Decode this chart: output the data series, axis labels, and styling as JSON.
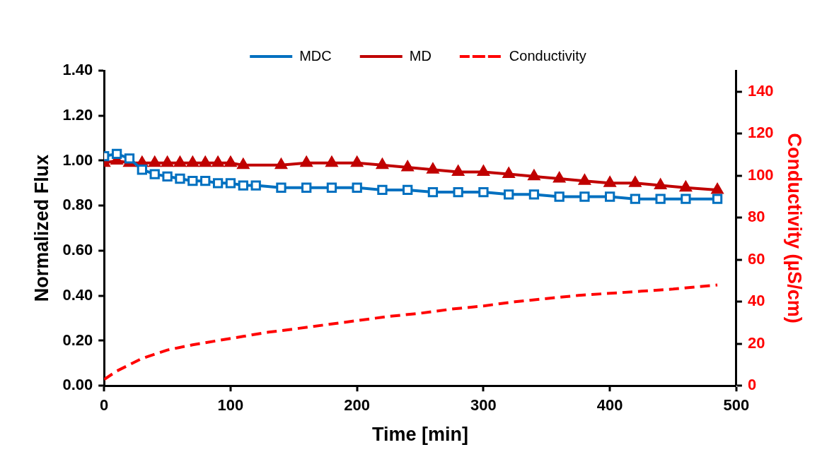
{
  "chart_data": {
    "type": "line",
    "xlabel": "Time [min]",
    "ylabel": "Normalized Flux",
    "y2label": "Conductivity (µS/cm)",
    "xlim": [
      0,
      500
    ],
    "xticks": [
      0,
      100,
      200,
      300,
      400,
      500
    ],
    "ylim": [
      0,
      1.4
    ],
    "yticks": [
      {
        "value": 0,
        "label": "0.00"
      },
      {
        "value": 0.2,
        "label": "0.20"
      },
      {
        "value": 0.4,
        "label": "0.40"
      },
      {
        "value": 0.6,
        "label": "0.60"
      },
      {
        "value": 0.8,
        "label": "0.80"
      },
      {
        "value": 1,
        "label": "1.00"
      },
      {
        "value": 1.2,
        "label": "1.20"
      },
      {
        "value": 1.4,
        "label": "1.40"
      }
    ],
    "y2lim": [
      0,
      150
    ],
    "y2ticks": [
      0,
      20,
      40,
      60,
      80,
      100,
      120,
      140
    ],
    "grid": false,
    "legend": "top",
    "series": [
      {
        "name": "MDC",
        "color": "#0070c0",
        "marker": "square",
        "line_style": "solid",
        "x": [
          0,
          10,
          20,
          30,
          40,
          50,
          60,
          70,
          80,
          90,
          100,
          110,
          120,
          140,
          160,
          180,
          200,
          220,
          240,
          260,
          280,
          300,
          320,
          340,
          360,
          380,
          400,
          420,
          440,
          460,
          485
        ],
        "values": [
          1.02,
          1.03,
          1.01,
          0.96,
          0.94,
          0.93,
          0.92,
          0.91,
          0.91,
          0.9,
          0.9,
          0.89,
          0.89,
          0.88,
          0.88,
          0.88,
          0.88,
          0.87,
          0.87,
          0.86,
          0.86,
          0.86,
          0.85,
          0.85,
          0.84,
          0.84,
          0.84,
          0.83,
          0.83,
          0.83,
          0.83
        ]
      },
      {
        "name": "MD",
        "color": "#c00000",
        "marker": "triangle",
        "line_style": "solid",
        "x": [
          0,
          10,
          20,
          30,
          40,
          50,
          60,
          70,
          80,
          90,
          100,
          110,
          140,
          160,
          180,
          200,
          220,
          240,
          260,
          280,
          300,
          320,
          340,
          360,
          380,
          400,
          420,
          440,
          460,
          485
        ],
        "values": [
          0.99,
          1.0,
          0.99,
          0.99,
          0.99,
          0.99,
          0.99,
          0.99,
          0.99,
          0.99,
          0.99,
          0.98,
          0.98,
          0.99,
          0.99,
          0.99,
          0.98,
          0.97,
          0.96,
          0.95,
          0.95,
          0.94,
          0.93,
          0.92,
          0.91,
          0.9,
          0.9,
          0.89,
          0.88,
          0.87
        ]
      },
      {
        "name": "Conductivity",
        "color": "#ff0000",
        "axis": "y2",
        "marker": "none",
        "line_style": "dashed",
        "x": [
          0,
          10,
          20,
          30,
          40,
          50,
          70,
          90,
          110,
          130,
          150,
          175,
          200,
          225,
          250,
          275,
          300,
          325,
          350,
          375,
          400,
          425,
          450,
          485
        ],
        "values": [
          3,
          7,
          10,
          13,
          15,
          17,
          19.5,
          21.5,
          23.5,
          25.5,
          27,
          29,
          31,
          33,
          34.5,
          36.5,
          38,
          40,
          41.5,
          43,
          44,
          45,
          46,
          48
        ]
      }
    ]
  }
}
